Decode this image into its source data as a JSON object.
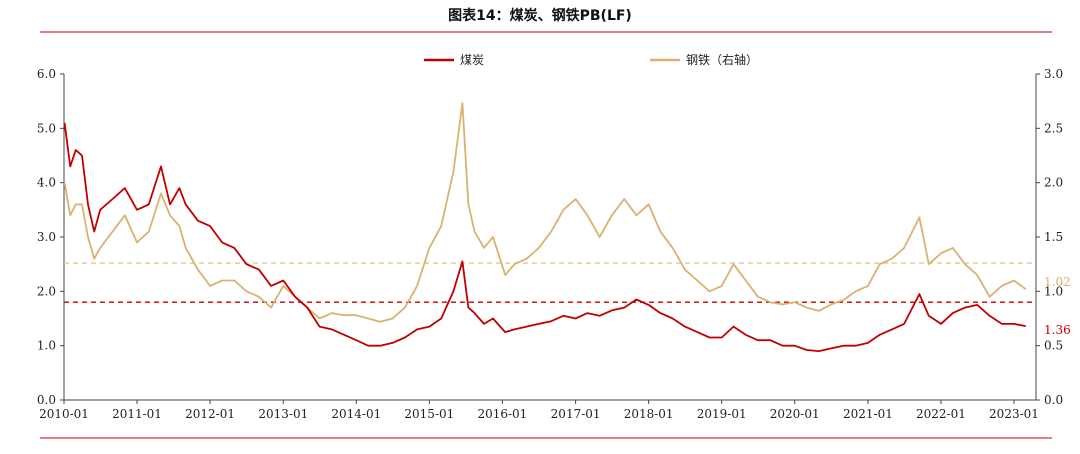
{
  "chart_data": {
    "type": "line",
    "title": "图表14：煤炭、钢铁PB(LF)",
    "x_ticks": [
      "2010-01",
      "2011-01",
      "2012-01",
      "2013-01",
      "2014-01",
      "2015-01",
      "2016-01",
      "2017-01",
      "2018-01",
      "2019-01",
      "2020-01",
      "2021-01",
      "2022-01",
      "2023-01"
    ],
    "left_axis": {
      "ylim": [
        0,
        6
      ],
      "ticks": [
        "0.0",
        "1.0",
        "2.0",
        "3.0",
        "4.0",
        "5.0",
        "6.0"
      ]
    },
    "right_axis": {
      "ylim": [
        0,
        3
      ],
      "ticks": [
        "0.0",
        "0.5",
        "1.0",
        "1.5",
        "2.0",
        "2.5",
        "3.0"
      ]
    },
    "legend_position": "top-center",
    "series": [
      {
        "name": "煤炭",
        "axis": "left",
        "color": "#c00000",
        "end_label": "1.36",
        "points": [
          [
            "2010-01-04",
            5.1
          ],
          [
            "2010-02-01",
            4.3
          ],
          [
            "2010-03-01",
            4.6
          ],
          [
            "2010-04-01",
            4.5
          ],
          [
            "2010-05-01",
            3.6
          ],
          [
            "2010-06-01",
            3.1
          ],
          [
            "2010-07-01",
            3.5
          ],
          [
            "2010-09-01",
            3.7
          ],
          [
            "2010-11-01",
            3.9
          ],
          [
            "2011-01-01",
            3.5
          ],
          [
            "2011-03-01",
            3.6
          ],
          [
            "2011-05-01",
            4.3
          ],
          [
            "2011-06-15",
            3.6
          ],
          [
            "2011-08-01",
            3.9
          ],
          [
            "2011-09-01",
            3.6
          ],
          [
            "2011-11-01",
            3.3
          ],
          [
            "2012-01-01",
            3.2
          ],
          [
            "2012-03-01",
            2.9
          ],
          [
            "2012-05-01",
            2.8
          ],
          [
            "2012-07-01",
            2.5
          ],
          [
            "2012-09-01",
            2.4
          ],
          [
            "2012-11-01",
            2.1
          ],
          [
            "2013-01-01",
            2.2
          ],
          [
            "2013-03-01",
            1.9
          ],
          [
            "2013-05-01",
            1.7
          ],
          [
            "2013-07-01",
            1.35
          ],
          [
            "2013-09-01",
            1.3
          ],
          [
            "2013-11-01",
            1.2
          ],
          [
            "2014-01-01",
            1.1
          ],
          [
            "2014-03-01",
            1.0
          ],
          [
            "2014-05-01",
            1.0
          ],
          [
            "2014-07-01",
            1.05
          ],
          [
            "2014-09-01",
            1.15
          ],
          [
            "2014-11-01",
            1.3
          ],
          [
            "2015-01-01",
            1.35
          ],
          [
            "2015-03-01",
            1.5
          ],
          [
            "2015-05-01",
            2.0
          ],
          [
            "2015-06-15",
            2.55
          ],
          [
            "2015-07-15",
            1.7
          ],
          [
            "2015-08-15",
            1.6
          ],
          [
            "2015-10-01",
            1.4
          ],
          [
            "2015-11-15",
            1.5
          ],
          [
            "2016-01-15",
            1.25
          ],
          [
            "2016-03-01",
            1.3
          ],
          [
            "2016-05-01",
            1.35
          ],
          [
            "2016-07-01",
            1.4
          ],
          [
            "2016-09-01",
            1.45
          ],
          [
            "2016-11-01",
            1.55
          ],
          [
            "2017-01-01",
            1.5
          ],
          [
            "2017-03-01",
            1.6
          ],
          [
            "2017-05-01",
            1.55
          ],
          [
            "2017-07-01",
            1.65
          ],
          [
            "2017-09-01",
            1.7
          ],
          [
            "2017-11-01",
            1.85
          ],
          [
            "2018-01-01",
            1.75
          ],
          [
            "2018-03-01",
            1.6
          ],
          [
            "2018-05-01",
            1.5
          ],
          [
            "2018-07-01",
            1.35
          ],
          [
            "2018-09-01",
            1.25
          ],
          [
            "2018-11-01",
            1.15
          ],
          [
            "2019-01-01",
            1.15
          ],
          [
            "2019-03-01",
            1.35
          ],
          [
            "2019-05-01",
            1.2
          ],
          [
            "2019-07-01",
            1.1
          ],
          [
            "2019-09-01",
            1.1
          ],
          [
            "2019-11-01",
            1.0
          ],
          [
            "2020-01-01",
            1.0
          ],
          [
            "2020-03-01",
            0.92
          ],
          [
            "2020-05-01",
            0.9
          ],
          [
            "2020-07-01",
            0.95
          ],
          [
            "2020-09-01",
            1.0
          ],
          [
            "2020-11-01",
            1.0
          ],
          [
            "2021-01-01",
            1.05
          ],
          [
            "2021-03-01",
            1.2
          ],
          [
            "2021-05-01",
            1.3
          ],
          [
            "2021-07-01",
            1.4
          ],
          [
            "2021-09-15",
            1.95
          ],
          [
            "2021-11-01",
            1.55
          ],
          [
            "2022-01-01",
            1.4
          ],
          [
            "2022-03-01",
            1.6
          ],
          [
            "2022-05-01",
            1.7
          ],
          [
            "2022-07-01",
            1.75
          ],
          [
            "2022-09-01",
            1.55
          ],
          [
            "2022-11-01",
            1.4
          ],
          [
            "2023-01-01",
            1.4
          ],
          [
            "2023-03-01",
            1.36
          ]
        ]
      },
      {
        "name": "钢铁（右轴）",
        "axis": "right",
        "color": "#d9b271",
        "end_label": "1.02",
        "points": [
          [
            "2010-01-04",
            2.0
          ],
          [
            "2010-02-01",
            1.7
          ],
          [
            "2010-03-01",
            1.8
          ],
          [
            "2010-04-01",
            1.8
          ],
          [
            "2010-05-01",
            1.5
          ],
          [
            "2010-06-01",
            1.3
          ],
          [
            "2010-07-01",
            1.4
          ],
          [
            "2010-09-01",
            1.55
          ],
          [
            "2010-11-01",
            1.7
          ],
          [
            "2011-01-01",
            1.45
          ],
          [
            "2011-03-01",
            1.55
          ],
          [
            "2011-05-01",
            1.9
          ],
          [
            "2011-06-15",
            1.7
          ],
          [
            "2011-08-01",
            1.6
          ],
          [
            "2011-09-01",
            1.4
          ],
          [
            "2011-11-01",
            1.2
          ],
          [
            "2012-01-01",
            1.05
          ],
          [
            "2012-03-01",
            1.1
          ],
          [
            "2012-05-01",
            1.1
          ],
          [
            "2012-07-01",
            1.0
          ],
          [
            "2012-09-01",
            0.95
          ],
          [
            "2012-11-01",
            0.85
          ],
          [
            "2013-01-01",
            1.05
          ],
          [
            "2013-03-01",
            0.95
          ],
          [
            "2013-05-01",
            0.85
          ],
          [
            "2013-07-01",
            0.75
          ],
          [
            "2013-09-01",
            0.8
          ],
          [
            "2013-11-01",
            0.78
          ],
          [
            "2014-01-01",
            0.78
          ],
          [
            "2014-03-01",
            0.75
          ],
          [
            "2014-05-01",
            0.72
          ],
          [
            "2014-07-01",
            0.75
          ],
          [
            "2014-09-01",
            0.85
          ],
          [
            "2014-11-01",
            1.05
          ],
          [
            "2015-01-01",
            1.4
          ],
          [
            "2015-03-01",
            1.6
          ],
          [
            "2015-05-01",
            2.1
          ],
          [
            "2015-06-15",
            2.73
          ],
          [
            "2015-07-15",
            1.8
          ],
          [
            "2015-08-15",
            1.55
          ],
          [
            "2015-10-01",
            1.4
          ],
          [
            "2015-11-15",
            1.5
          ],
          [
            "2016-01-15",
            1.15
          ],
          [
            "2016-03-01",
            1.25
          ],
          [
            "2016-05-01",
            1.3
          ],
          [
            "2016-07-01",
            1.4
          ],
          [
            "2016-09-01",
            1.55
          ],
          [
            "2016-11-01",
            1.75
          ],
          [
            "2017-01-01",
            1.85
          ],
          [
            "2017-03-01",
            1.7
          ],
          [
            "2017-05-01",
            1.5
          ],
          [
            "2017-07-01",
            1.7
          ],
          [
            "2017-09-01",
            1.85
          ],
          [
            "2017-11-01",
            1.7
          ],
          [
            "2018-01-01",
            1.8
          ],
          [
            "2018-03-01",
            1.55
          ],
          [
            "2018-05-01",
            1.4
          ],
          [
            "2018-07-01",
            1.2
          ],
          [
            "2018-09-01",
            1.1
          ],
          [
            "2018-11-01",
            1.0
          ],
          [
            "2019-01-01",
            1.05
          ],
          [
            "2019-03-01",
            1.25
          ],
          [
            "2019-05-01",
            1.1
          ],
          [
            "2019-07-01",
            0.95
          ],
          [
            "2019-09-01",
            0.9
          ],
          [
            "2019-11-01",
            0.88
          ],
          [
            "2020-01-01",
            0.9
          ],
          [
            "2020-03-01",
            0.85
          ],
          [
            "2020-05-01",
            0.82
          ],
          [
            "2020-07-01",
            0.88
          ],
          [
            "2020-09-01",
            0.92
          ],
          [
            "2020-11-01",
            1.0
          ],
          [
            "2021-01-01",
            1.05
          ],
          [
            "2021-03-01",
            1.25
          ],
          [
            "2021-05-01",
            1.3
          ],
          [
            "2021-07-01",
            1.4
          ],
          [
            "2021-09-15",
            1.68
          ],
          [
            "2021-11-01",
            1.25
          ],
          [
            "2022-01-01",
            1.35
          ],
          [
            "2022-03-01",
            1.4
          ],
          [
            "2022-05-01",
            1.25
          ],
          [
            "2022-07-01",
            1.15
          ],
          [
            "2022-09-01",
            0.95
          ],
          [
            "2022-11-01",
            1.05
          ],
          [
            "2023-01-01",
            1.1
          ],
          [
            "2023-03-01",
            1.02
          ]
        ]
      }
    ],
    "reference_lines": [
      {
        "axis": "left",
        "value": 1.8,
        "color": "#c00000"
      },
      {
        "axis": "right",
        "value": 1.26,
        "color": "#e8c58d"
      }
    ]
  }
}
